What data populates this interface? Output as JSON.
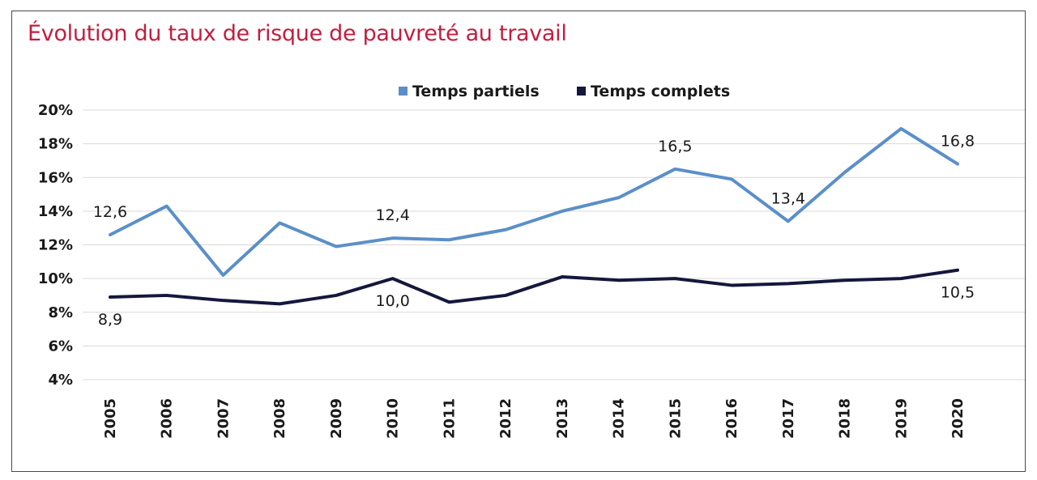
{
  "chart_data": {
    "type": "line",
    "title": "Évolution du taux de risque de pauvreté au travail",
    "xlabel": "",
    "ylabel": "",
    "categories": [
      "2005",
      "2006",
      "2007",
      "2008",
      "2009",
      "2010",
      "2011",
      "2012",
      "2013",
      "2014",
      "2015",
      "2016",
      "2017",
      "2018",
      "2019",
      "2020"
    ],
    "ylim": [
      4,
      20
    ],
    "yticks": [
      "4%",
      "6%",
      "8%",
      "10%",
      "12%",
      "14%",
      "16%",
      "18%",
      "20%"
    ],
    "grid": true,
    "legend_position": "top",
    "series": [
      {
        "name": "Temps partiels",
        "color": "#5b8fc7",
        "values": [
          12.6,
          14.3,
          10.2,
          13.3,
          11.9,
          12.4,
          12.3,
          12.9,
          14.0,
          14.8,
          16.5,
          15.9,
          13.4,
          16.3,
          18.9,
          16.8
        ],
        "labels": [
          {
            "index": 0,
            "text": "12,6",
            "pos": "above"
          },
          {
            "index": 5,
            "text": "12,4",
            "pos": "above"
          },
          {
            "index": 10,
            "text": "16,5",
            "pos": "above"
          },
          {
            "index": 12,
            "text": "13,4",
            "pos": "above"
          },
          {
            "index": 15,
            "text": "16,8",
            "pos": "above"
          }
        ]
      },
      {
        "name": "Temps complets",
        "color": "#14183d",
        "values": [
          8.9,
          9.0,
          8.7,
          8.5,
          9.0,
          10.0,
          8.6,
          9.0,
          10.1,
          9.9,
          10.0,
          9.6,
          9.7,
          9.9,
          10.0,
          10.5
        ],
        "labels": [
          {
            "index": 0,
            "text": "8,9",
            "pos": "below"
          },
          {
            "index": 5,
            "text": "10,0",
            "pos": "below"
          },
          {
            "index": 15,
            "text": "10,5",
            "pos": "below"
          }
        ]
      }
    ]
  }
}
